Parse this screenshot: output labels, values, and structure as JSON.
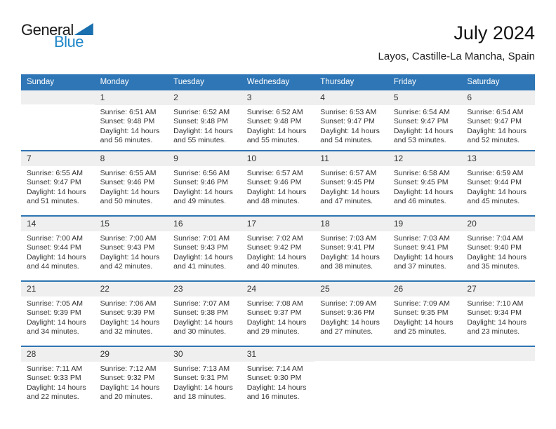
{
  "logo": {
    "general": "General",
    "blue": "Blue"
  },
  "header": {
    "title": "July 2024",
    "subtitle": "Layos, Castille-La Mancha, Spain"
  },
  "colors": {
    "header_bar_blue": "#2e76b6",
    "week_separator_blue": "#2e75b2",
    "day_band_gray": "#efefef",
    "logo_text_blue": "#1d86c8",
    "logo_triangle_blue": "#1a6fae",
    "body_text": "#333333"
  },
  "calendar": {
    "weekdays": [
      "Sunday",
      "Monday",
      "Tuesday",
      "Wednesday",
      "Thursday",
      "Friday",
      "Saturday"
    ],
    "weeks": [
      {
        "days": [
          null,
          {
            "number": "1",
            "sunrise": "Sunrise: 6:51 AM",
            "sunset": "Sunset: 9:48 PM",
            "daylight_line1": "Daylight: 14 hours",
            "daylight_line2": "and 56 minutes."
          },
          {
            "number": "2",
            "sunrise": "Sunrise: 6:52 AM",
            "sunset": "Sunset: 9:48 PM",
            "daylight_line1": "Daylight: 14 hours",
            "daylight_line2": "and 55 minutes."
          },
          {
            "number": "3",
            "sunrise": "Sunrise: 6:52 AM",
            "sunset": "Sunset: 9:48 PM",
            "daylight_line1": "Daylight: 14 hours",
            "daylight_line2": "and 55 minutes."
          },
          {
            "number": "4",
            "sunrise": "Sunrise: 6:53 AM",
            "sunset": "Sunset: 9:47 PM",
            "daylight_line1": "Daylight: 14 hours",
            "daylight_line2": "and 54 minutes."
          },
          {
            "number": "5",
            "sunrise": "Sunrise: 6:54 AM",
            "sunset": "Sunset: 9:47 PM",
            "daylight_line1": "Daylight: 14 hours",
            "daylight_line2": "and 53 minutes."
          },
          {
            "number": "6",
            "sunrise": "Sunrise: 6:54 AM",
            "sunset": "Sunset: 9:47 PM",
            "daylight_line1": "Daylight: 14 hours",
            "daylight_line2": "and 52 minutes."
          }
        ]
      },
      {
        "days": [
          {
            "number": "7",
            "sunrise": "Sunrise: 6:55 AM",
            "sunset": "Sunset: 9:47 PM",
            "daylight_line1": "Daylight: 14 hours",
            "daylight_line2": "and 51 minutes."
          },
          {
            "number": "8",
            "sunrise": "Sunrise: 6:55 AM",
            "sunset": "Sunset: 9:46 PM",
            "daylight_line1": "Daylight: 14 hours",
            "daylight_line2": "and 50 minutes."
          },
          {
            "number": "9",
            "sunrise": "Sunrise: 6:56 AM",
            "sunset": "Sunset: 9:46 PM",
            "daylight_line1": "Daylight: 14 hours",
            "daylight_line2": "and 49 minutes."
          },
          {
            "number": "10",
            "sunrise": "Sunrise: 6:57 AM",
            "sunset": "Sunset: 9:46 PM",
            "daylight_line1": "Daylight: 14 hours",
            "daylight_line2": "and 48 minutes."
          },
          {
            "number": "11",
            "sunrise": "Sunrise: 6:57 AM",
            "sunset": "Sunset: 9:45 PM",
            "daylight_line1": "Daylight: 14 hours",
            "daylight_line2": "and 47 minutes."
          },
          {
            "number": "12",
            "sunrise": "Sunrise: 6:58 AM",
            "sunset": "Sunset: 9:45 PM",
            "daylight_line1": "Daylight: 14 hours",
            "daylight_line2": "and 46 minutes."
          },
          {
            "number": "13",
            "sunrise": "Sunrise: 6:59 AM",
            "sunset": "Sunset: 9:44 PM",
            "daylight_line1": "Daylight: 14 hours",
            "daylight_line2": "and 45 minutes."
          }
        ]
      },
      {
        "days": [
          {
            "number": "14",
            "sunrise": "Sunrise: 7:00 AM",
            "sunset": "Sunset: 9:44 PM",
            "daylight_line1": "Daylight: 14 hours",
            "daylight_line2": "and 44 minutes."
          },
          {
            "number": "15",
            "sunrise": "Sunrise: 7:00 AM",
            "sunset": "Sunset: 9:43 PM",
            "daylight_line1": "Daylight: 14 hours",
            "daylight_line2": "and 42 minutes."
          },
          {
            "number": "16",
            "sunrise": "Sunrise: 7:01 AM",
            "sunset": "Sunset: 9:43 PM",
            "daylight_line1": "Daylight: 14 hours",
            "daylight_line2": "and 41 minutes."
          },
          {
            "number": "17",
            "sunrise": "Sunrise: 7:02 AM",
            "sunset": "Sunset: 9:42 PM",
            "daylight_line1": "Daylight: 14 hours",
            "daylight_line2": "and 40 minutes."
          },
          {
            "number": "18",
            "sunrise": "Sunrise: 7:03 AM",
            "sunset": "Sunset: 9:41 PM",
            "daylight_line1": "Daylight: 14 hours",
            "daylight_line2": "and 38 minutes."
          },
          {
            "number": "19",
            "sunrise": "Sunrise: 7:03 AM",
            "sunset": "Sunset: 9:41 PM",
            "daylight_line1": "Daylight: 14 hours",
            "daylight_line2": "and 37 minutes."
          },
          {
            "number": "20",
            "sunrise": "Sunrise: 7:04 AM",
            "sunset": "Sunset: 9:40 PM",
            "daylight_line1": "Daylight: 14 hours",
            "daylight_line2": "and 35 minutes."
          }
        ]
      },
      {
        "days": [
          {
            "number": "21",
            "sunrise": "Sunrise: 7:05 AM",
            "sunset": "Sunset: 9:39 PM",
            "daylight_line1": "Daylight: 14 hours",
            "daylight_line2": "and 34 minutes."
          },
          {
            "number": "22",
            "sunrise": "Sunrise: 7:06 AM",
            "sunset": "Sunset: 9:39 PM",
            "daylight_line1": "Daylight: 14 hours",
            "daylight_line2": "and 32 minutes."
          },
          {
            "number": "23",
            "sunrise": "Sunrise: 7:07 AM",
            "sunset": "Sunset: 9:38 PM",
            "daylight_line1": "Daylight: 14 hours",
            "daylight_line2": "and 30 minutes."
          },
          {
            "number": "24",
            "sunrise": "Sunrise: 7:08 AM",
            "sunset": "Sunset: 9:37 PM",
            "daylight_line1": "Daylight: 14 hours",
            "daylight_line2": "and 29 minutes."
          },
          {
            "number": "25",
            "sunrise": "Sunrise: 7:09 AM",
            "sunset": "Sunset: 9:36 PM",
            "daylight_line1": "Daylight: 14 hours",
            "daylight_line2": "and 27 minutes."
          },
          {
            "number": "26",
            "sunrise": "Sunrise: 7:09 AM",
            "sunset": "Sunset: 9:35 PM",
            "daylight_line1": "Daylight: 14 hours",
            "daylight_line2": "and 25 minutes."
          },
          {
            "number": "27",
            "sunrise": "Sunrise: 7:10 AM",
            "sunset": "Sunset: 9:34 PM",
            "daylight_line1": "Daylight: 14 hours",
            "daylight_line2": "and 23 minutes."
          }
        ]
      },
      {
        "days": [
          {
            "number": "28",
            "sunrise": "Sunrise: 7:11 AM",
            "sunset": "Sunset: 9:33 PM",
            "daylight_line1": "Daylight: 14 hours",
            "daylight_line2": "and 22 minutes."
          },
          {
            "number": "29",
            "sunrise": "Sunrise: 7:12 AM",
            "sunset": "Sunset: 9:32 PM",
            "daylight_line1": "Daylight: 14 hours",
            "daylight_line2": "and 20 minutes."
          },
          {
            "number": "30",
            "sunrise": "Sunrise: 7:13 AM",
            "sunset": "Sunset: 9:31 PM",
            "daylight_line1": "Daylight: 14 hours",
            "daylight_line2": "and 18 minutes."
          },
          {
            "number": "31",
            "sunrise": "Sunrise: 7:14 AM",
            "sunset": "Sunset: 9:30 PM",
            "daylight_line1": "Daylight: 14 hours",
            "daylight_line2": "and 16 minutes."
          },
          null,
          null,
          null
        ]
      }
    ]
  }
}
